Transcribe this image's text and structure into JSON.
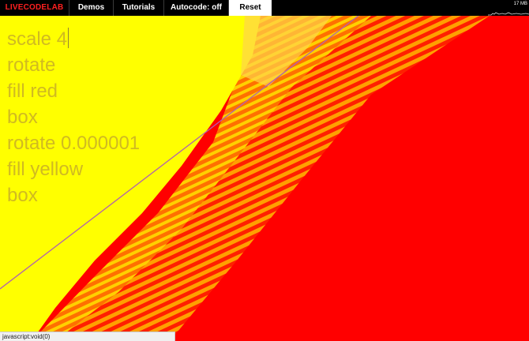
{
  "menu": {
    "logo": "LIVECODELAB",
    "items": [
      {
        "label": "Demos"
      },
      {
        "label": "Tutorials"
      },
      {
        "label": "Autocode: off"
      },
      {
        "label": "Reset"
      }
    ]
  },
  "stats": {
    "label": "17 MB"
  },
  "code": {
    "lines": [
      "scale 4",
      "rotate",
      "fill red",
      "box",
      "rotate 0.000001",
      "fill yellow",
      "box"
    ]
  },
  "statusbar": {
    "text": "javascript:void(0)"
  },
  "colors": {
    "background": "#ff0000",
    "yellow": "#ffff00",
    "orange": "#ff9a00",
    "menubar": "#000000",
    "logo": "#ff2020",
    "diagonal_line": "#b060b0"
  }
}
